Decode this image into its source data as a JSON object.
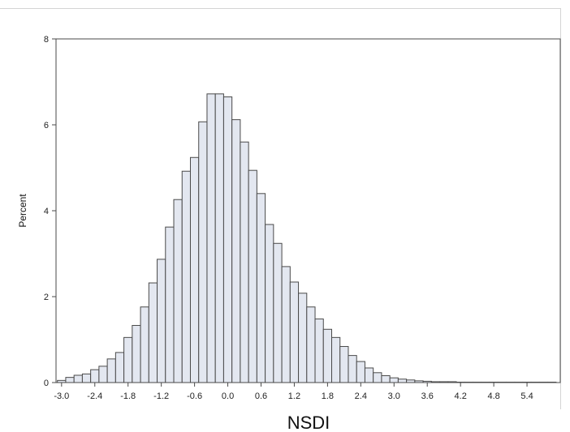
{
  "chart_data": {
    "type": "bar",
    "xlabel": "NSDI",
    "ylabel": "Percent",
    "xlim": [
      -3.1,
      6.0
    ],
    "ylim": [
      0,
      8
    ],
    "grid": false,
    "bin_width": 0.15,
    "x_ticks": [
      "-3.0",
      "-2.4",
      "-1.8",
      "-1.2",
      "-0.6",
      "0.0",
      "0.6",
      "1.2",
      "1.8",
      "2.4",
      "3.0",
      "3.6",
      "4.2",
      "4.8",
      "5.4"
    ],
    "y_ticks": [
      "0",
      "2",
      "4",
      "6",
      "8"
    ],
    "bins": [
      {
        "x": -3.0,
        "value": 0.05
      },
      {
        "x": -2.85,
        "value": 0.12
      },
      {
        "x": -2.7,
        "value": 0.17
      },
      {
        "x": -2.55,
        "value": 0.2
      },
      {
        "x": -2.4,
        "value": 0.3
      },
      {
        "x": -2.25,
        "value": 0.38
      },
      {
        "x": -2.1,
        "value": 0.55
      },
      {
        "x": -1.95,
        "value": 0.7
      },
      {
        "x": -1.8,
        "value": 1.05
      },
      {
        "x": -1.65,
        "value": 1.33
      },
      {
        "x": -1.5,
        "value": 1.76
      },
      {
        "x": -1.35,
        "value": 2.32
      },
      {
        "x": -1.2,
        "value": 2.87
      },
      {
        "x": -1.05,
        "value": 3.62
      },
      {
        "x": -0.9,
        "value": 4.26
      },
      {
        "x": -0.75,
        "value": 4.92
      },
      {
        "x": -0.6,
        "value": 5.24
      },
      {
        "x": -0.45,
        "value": 6.07
      },
      {
        "x": -0.3,
        "value": 6.72
      },
      {
        "x": -0.15,
        "value": 6.72
      },
      {
        "x": 0.0,
        "value": 6.65
      },
      {
        "x": 0.15,
        "value": 6.12
      },
      {
        "x": 0.3,
        "value": 5.6
      },
      {
        "x": 0.45,
        "value": 4.94
      },
      {
        "x": 0.6,
        "value": 4.4
      },
      {
        "x": 0.75,
        "value": 3.68
      },
      {
        "x": 0.9,
        "value": 3.24
      },
      {
        "x": 1.05,
        "value": 2.7
      },
      {
        "x": 1.2,
        "value": 2.34
      },
      {
        "x": 1.35,
        "value": 2.08
      },
      {
        "x": 1.5,
        "value": 1.76
      },
      {
        "x": 1.65,
        "value": 1.48
      },
      {
        "x": 1.8,
        "value": 1.24
      },
      {
        "x": 1.95,
        "value": 1.05
      },
      {
        "x": 2.1,
        "value": 0.84
      },
      {
        "x": 2.25,
        "value": 0.63
      },
      {
        "x": 2.4,
        "value": 0.49
      },
      {
        "x": 2.55,
        "value": 0.34
      },
      {
        "x": 2.7,
        "value": 0.23
      },
      {
        "x": 2.85,
        "value": 0.16
      },
      {
        "x": 3.0,
        "value": 0.11
      },
      {
        "x": 3.15,
        "value": 0.08
      },
      {
        "x": 3.3,
        "value": 0.06
      },
      {
        "x": 3.45,
        "value": 0.04
      },
      {
        "x": 3.6,
        "value": 0.03
      },
      {
        "x": 3.75,
        "value": 0.02
      },
      {
        "x": 3.9,
        "value": 0.02
      },
      {
        "x": 4.05,
        "value": 0.02
      },
      {
        "x": 4.2,
        "value": 0.01
      },
      {
        "x": 4.35,
        "value": 0.01
      },
      {
        "x": 4.5,
        "value": 0.01
      },
      {
        "x": 4.65,
        "value": 0.01
      },
      {
        "x": 4.8,
        "value": 0.01
      },
      {
        "x": 4.95,
        "value": 0.01
      },
      {
        "x": 5.1,
        "value": 0.01
      },
      {
        "x": 5.25,
        "value": 0.01
      },
      {
        "x": 5.4,
        "value": 0.01
      },
      {
        "x": 5.55,
        "value": 0.01
      },
      {
        "x": 5.7,
        "value": 0.01
      },
      {
        "x": 5.85,
        "value": 0.01
      }
    ]
  }
}
